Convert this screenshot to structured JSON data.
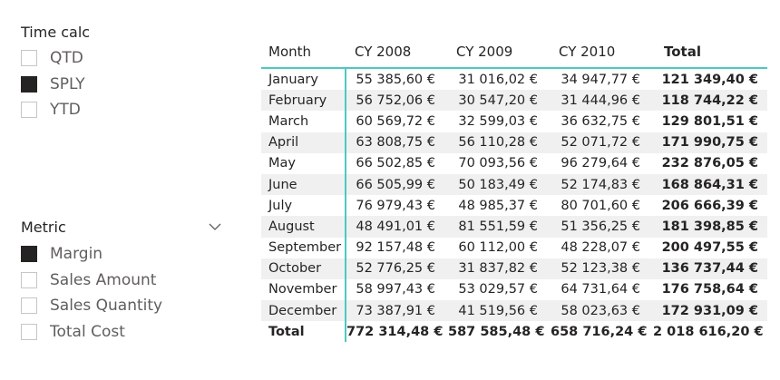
{
  "time_calc": {
    "title": "Time calc",
    "options": [
      {
        "label": "QTD",
        "checked": false
      },
      {
        "label": "SPLY",
        "checked": true
      },
      {
        "label": "YTD",
        "checked": false
      }
    ]
  },
  "metric": {
    "title": "Metric",
    "options": [
      {
        "label": "Margin",
        "checked": true
      },
      {
        "label": "Sales Amount",
        "checked": false
      },
      {
        "label": "Sales Quantity",
        "checked": false
      },
      {
        "label": "Total Cost",
        "checked": false
      }
    ]
  },
  "matrix": {
    "headers": {
      "month": "Month",
      "y1": "CY 2008",
      "y2": "CY 2009",
      "y3": "CY 2010",
      "total": "Total"
    },
    "rows": [
      {
        "month": "January",
        "y1": "55 385,60 €",
        "y2": "31 016,02 €",
        "y3": "34 947,77 €",
        "total": "121 349,40 €"
      },
      {
        "month": "February",
        "y1": "56 752,06 €",
        "y2": "30 547,20 €",
        "y3": "31 444,96 €",
        "total": "118 744,22 €"
      },
      {
        "month": "March",
        "y1": "60 569,72 €",
        "y2": "32 599,03 €",
        "y3": "36 632,75 €",
        "total": "129 801,51 €"
      },
      {
        "month": "April",
        "y1": "63 808,75 €",
        "y2": "56 110,28 €",
        "y3": "52 071,72 €",
        "total": "171 990,75 €"
      },
      {
        "month": "May",
        "y1": "66 502,85 €",
        "y2": "70 093,56 €",
        "y3": "96 279,64 €",
        "total": "232 876,05 €"
      },
      {
        "month": "June",
        "y1": "66 505,99 €",
        "y2": "50 183,49 €",
        "y3": "52 174,83 €",
        "total": "168 864,31 €"
      },
      {
        "month": "July",
        "y1": "76 979,43 €",
        "y2": "48 985,37 €",
        "y3": "80 701,60 €",
        "total": "206 666,39 €"
      },
      {
        "month": "August",
        "y1": "48 491,01 €",
        "y2": "81 551,59 €",
        "y3": "51 356,25 €",
        "total": "181 398,85 €"
      },
      {
        "month": "September",
        "y1": "92 157,48 €",
        "y2": "60 112,00 €",
        "y3": "48 228,07 €",
        "total": "200 497,55 €"
      },
      {
        "month": "October",
        "y1": "52 776,25 €",
        "y2": "31 837,82 €",
        "y3": "52 123,38 €",
        "total": "136 737,44 €"
      },
      {
        "month": "November",
        "y1": "58 997,43 €",
        "y2": "53 029,57 €",
        "y3": "64 731,64 €",
        "total": "176 758,64 €"
      },
      {
        "month": "December",
        "y1": "73 387,91 €",
        "y2": "41 519,56 €",
        "y3": "58 023,63 €",
        "total": "172 931,09 €"
      }
    ],
    "total_row": {
      "month": "Total",
      "y1": "772 314,48 €",
      "y2": "587 585,48 €",
      "y3": "658 716,24 €",
      "total": "2 018 616,20 €"
    }
  },
  "colors": {
    "accent": "#4cc9c0",
    "checked": "#252423",
    "row_alt": "#f0f0f0"
  },
  "icons": {
    "metric_dropdown": "chevron-down-icon"
  }
}
